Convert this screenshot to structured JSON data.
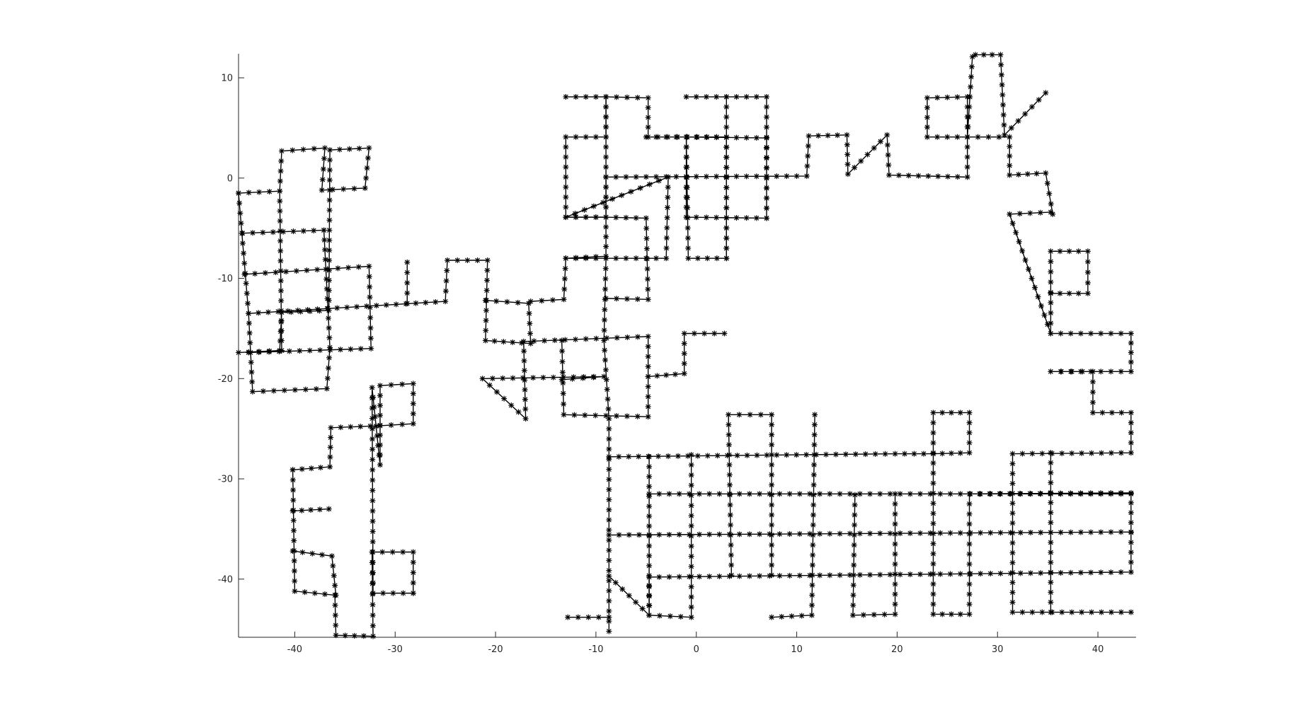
{
  "chart_data": {
    "type": "line",
    "title": "",
    "xlabel": "",
    "ylabel": "",
    "xlim": [
      -45.6,
      43.8
    ],
    "ylim": [
      -45.8,
      12.4
    ],
    "grid": false,
    "marker": "*",
    "line_color": "#000000",
    "x_ticks": [
      -40,
      -30,
      -20,
      -10,
      0,
      10,
      20,
      30,
      40
    ],
    "y_ticks": [
      -40,
      -30,
      -20,
      -10,
      0,
      10
    ],
    "x_tick_labels": [
      "-40",
      "-30",
      "-20",
      "-10",
      "0",
      "10",
      "20",
      "30",
      "40"
    ],
    "y_tick_labels": [
      "-40",
      "-30",
      "-20",
      "-10",
      "0",
      "10"
    ],
    "series": [
      {
        "x": [
          -45.6,
          -41.5,
          -41.3,
          -37,
          -37.3,
          -33,
          -32.6,
          -36.5,
          -36.6,
          -41.3,
          -41.5,
          -45.6
        ],
        "y": [
          -1.5,
          -1.3,
          2.7,
          3.0,
          -1.2,
          -1.0,
          3.0,
          2.8,
          -13.2,
          -13.4,
          -17.2,
          -17.4
        ]
      },
      {
        "x": [
          -45.6,
          -44.6,
          -44.2,
          -36.8,
          -36.5,
          -37.1
        ],
        "y": [
          -1.5,
          -13.5,
          -21.3,
          -21.0,
          -16.9,
          -5.2
        ]
      },
      {
        "x": [
          -45.2,
          -37.1
        ],
        "y": [
          -5.5,
          -5.2
        ]
      },
      {
        "x": [
          -45,
          -32.6,
          -32.4,
          -44.6
        ],
        "y": [
          -9.6,
          -8.8,
          -17.0,
          -17.4
        ]
      },
      {
        "x": [
          -41.5,
          -41.3
        ],
        "y": [
          -1.3,
          -17.2
        ]
      },
      {
        "x": [
          -44.6,
          -25,
          -24.8,
          -20.8,
          -21,
          -16.5,
          -16.7,
          -21
        ],
        "y": [
          -13.5,
          -12.3,
          -8.2,
          -8.2,
          -16.2,
          -16.5,
          -12.5,
          -12.2
        ]
      },
      {
        "x": [
          -28.8,
          -28.8
        ],
        "y": [
          -12.5,
          -8.4
        ]
      },
      {
        "x": [
          -16.5,
          -13.2,
          -13.0,
          -9,
          -9,
          -5,
          -4.8,
          -9
        ],
        "y": [
          -12.3,
          -12.1,
          -8.0,
          -7.8,
          -3.9,
          -4.0,
          -12.1,
          -12.0
        ]
      },
      {
        "x": [
          -13.0,
          -3,
          -2.8,
          -13.0,
          -13.0,
          -9,
          -9,
          -13.0
        ],
        "y": [
          -8.0,
          -8.0,
          0.1,
          -3.9,
          4.1,
          4.1,
          8.1,
          8.1
        ]
      },
      {
        "x": [
          -9,
          -4.8,
          -4.8,
          3,
          3,
          -0.8,
          -1,
          -5
        ],
        "y": [
          8.1,
          8.0,
          4.1,
          4.1,
          -8.0,
          -8.0,
          4.1,
          4.1
        ]
      },
      {
        "x": [
          -9,
          -9,
          -13.0
        ],
        "y": [
          0.1,
          -3.9,
          -3.9
        ]
      },
      {
        "x": [
          -13.0,
          -9,
          -9
        ],
        "y": [
          -3.9,
          -3.9,
          8.1
        ]
      },
      {
        "x": [
          -9,
          11,
          11.2,
          15,
          15.1,
          19,
          19.2,
          27,
          27,
          23,
          23,
          27
        ],
        "y": [
          0.1,
          0.2,
          4.2,
          4.3,
          0.4,
          4.3,
          0.3,
          0.1,
          8.1,
          8.0,
          4.1,
          4.1
        ]
      },
      {
        "x": [
          -1,
          7,
          7,
          -1,
          -1,
          7,
          7
        ],
        "y": [
          8.1,
          8.1,
          -4.0,
          -3.9,
          4.1,
          4.0,
          -4.0
        ]
      },
      {
        "x": [
          3,
          3
        ],
        "y": [
          8.1,
          -8.0
        ]
      },
      {
        "x": [
          -9,
          -9.2,
          -8.7,
          -8.7
        ],
        "y": [
          -8.0,
          -16.2,
          -24.0,
          -45.2
        ]
      },
      {
        "x": [
          -13.4,
          -13.2,
          -4.8,
          -4.8,
          -17.2,
          -17.0,
          -21.3,
          -9.2,
          -13.4
        ],
        "y": [
          -16.2,
          -23.6,
          -23.8,
          -15.8,
          -16.3,
          -24.0,
          -20.0,
          -19.8,
          -20.1
        ]
      },
      {
        "x": [
          -4.8,
          -1.2,
          -1.2,
          2.8
        ],
        "y": [
          -19.8,
          -19.5,
          -15.5,
          -15.5
        ]
      },
      {
        "x": [
          27,
          27.5,
          27.8,
          30.3,
          30.7,
          34.8
        ],
        "y": [
          4.1,
          12.1,
          12.3,
          12.3,
          4.3,
          8.5
        ]
      },
      {
        "x": [
          27,
          31.2,
          31.2,
          34.8,
          35.5,
          35.3,
          31.2,
          35.3,
          35.3,
          39,
          39,
          35.3
        ],
        "y": [
          4.1,
          4.1,
          0.3,
          0.5,
          -3.6,
          -3.4,
          -3.6,
          -15.5,
          -7.3,
          -7.3,
          -11.5,
          -11.5
        ]
      },
      {
        "x": [
          35.3,
          43.3,
          43.3,
          35.3,
          39.5,
          39.5,
          43.3,
          43.3,
          31.5,
          31.5,
          43.3
        ],
        "y": [
          -15.5,
          -15.5,
          -19.3,
          -19.3,
          -19.3,
          -23.4,
          -23.4,
          -27.4,
          -27.5,
          -43.3,
          -43.3
        ]
      },
      {
        "x": [
          -8.7,
          19.8,
          23.6,
          27.2,
          27.2,
          23.6,
          23.6,
          27.2,
          27.2,
          43.3,
          43.3,
          -4.7,
          -4.7,
          -8.7
        ],
        "y": [
          -27.8,
          -27.5,
          -27.5,
          -27.4,
          -23.4,
          -23.4,
          -43.5,
          -43.5,
          -31.5,
          -31.4,
          -39.3,
          -39.8,
          -43.6,
          -39.7
        ]
      },
      {
        "x": [
          -4.7,
          43.3
        ],
        "y": [
          -31.5,
          -31.5
        ]
      },
      {
        "x": [
          -8.7,
          43.3
        ],
        "y": [
          -35.6,
          -35.3
        ]
      },
      {
        "x": [
          -4.7,
          -4.7,
          -0.5,
          -0.5
        ],
        "y": [
          -27.8,
          -43.6,
          -43.8,
          -27.6
        ]
      },
      {
        "x": [
          3.5,
          3.2,
          7.5,
          7.5
        ],
        "y": [
          -39.6,
          -23.6,
          -23.6,
          -39.6
        ]
      },
      {
        "x": [
          11.8,
          11.5,
          7.5
        ],
        "y": [
          -23.6,
          -43.6,
          -43.8
        ]
      },
      {
        "x": [
          15.8,
          15.6,
          19.8,
          19.8
        ],
        "y": [
          -31.6,
          -43.6,
          -43.5,
          -31.5
        ]
      },
      {
        "x": [
          35.3,
          35.3
        ],
        "y": [
          -27.4,
          -43.3
        ]
      },
      {
        "x": [
          -12.8,
          -8.7
        ],
        "y": [
          -43.8,
          -43.8
        ]
      },
      {
        "x": [
          -40.2,
          -36.5,
          -36.4,
          -31.5,
          -28.2,
          -28.2,
          -31.5,
          -31.5,
          -32.3,
          -32.2,
          -28.2
        ],
        "y": [
          -29.1,
          -28.8,
          -24.9,
          -24.7,
          -24.5,
          -20.5,
          -20.7,
          -28.6,
          -20.9,
          -41.4,
          -41.4
        ]
      },
      {
        "x": [
          -40.2,
          -40,
          -36.0,
          -35.9,
          -32.2,
          -32.3,
          -28.2,
          -28.2
        ],
        "y": [
          -29.1,
          -41.2,
          -41.6,
          -45.6,
          -45.7,
          -37.3,
          -37.3,
          -41.4
        ]
      },
      {
        "x": [
          -40.2,
          -36.6
        ],
        "y": [
          -33.2,
          -33.0
        ]
      },
      {
        "x": [
          -40.2,
          -36.3,
          -35.9
        ],
        "y": [
          -37.2,
          -37.7,
          -41.6
        ]
      }
    ]
  }
}
